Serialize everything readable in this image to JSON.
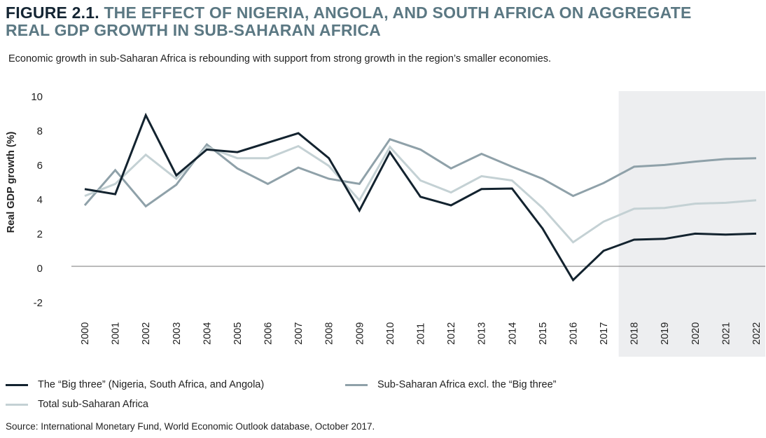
{
  "title_prefix": "FIGURE 2.1.",
  "title_line1": "THE EFFECT OF NIGERIA, ANGOLA, AND SOUTH AFRICA ON AGGREGATE",
  "title_line2": "REAL GDP GROWTH IN SUB-SAHARAN AFRICA",
  "subtitle": "Economic growth in sub-Saharan Africa is rebounding with support from strong growth in the region’s smaller economies.",
  "source": "Source: International Monetary Fund, World Economic Outlook database, October 2017.",
  "chart_data": {
    "type": "line",
    "title": "The effect of Nigeria, Angola, and South Africa on aggregate real GDP growth in sub-Saharan Africa",
    "xlabel": "",
    "ylabel": "Real GDP growth (%)",
    "ylim": [
      -2,
      10
    ],
    "yticks": [
      "10",
      "8",
      "6",
      "4",
      "2",
      "0",
      "-2"
    ],
    "ytick_values": [
      10,
      8,
      6,
      4,
      2,
      0,
      -2
    ],
    "x": [
      "2000",
      "2001",
      "2002",
      "2003",
      "2004",
      "2005",
      "2006",
      "2007",
      "2008",
      "2009",
      "2010",
      "2011",
      "2012",
      "2013",
      "2014",
      "2015",
      "2016",
      "2017",
      "2018",
      "2019",
      "2020",
      "2021",
      "2022"
    ],
    "projection_shaded_from": "2018",
    "series": [
      {
        "name": "Sub-Saharan Africa excl. the “Big three”",
        "color": "#8fa1a9",
        "values": [
          3.55,
          5.6,
          3.5,
          4.75,
          7.1,
          5.7,
          4.8,
          5.75,
          5.1,
          4.8,
          7.4,
          6.8,
          5.7,
          6.55,
          5.8,
          5.1,
          4.1,
          4.85,
          5.8,
          5.9,
          6.1,
          6.25,
          6.3
        ]
      },
      {
        "name": "Total sub-Saharan Africa",
        "color": "#c4d1d4",
        "values": [
          4.1,
          4.8,
          6.5,
          5.1,
          6.95,
          6.3,
          6.3,
          7.0,
          5.85,
          3.85,
          6.95,
          5.0,
          4.3,
          5.25,
          5.0,
          3.4,
          1.4,
          2.6,
          3.35,
          3.4,
          3.65,
          3.7,
          3.85
        ]
      },
      {
        "name": "The “Big three” (Nigeria, South Africa, and Angola)",
        "color": "#13232f",
        "values": [
          4.5,
          4.2,
          8.8,
          5.3,
          6.8,
          6.65,
          7.2,
          7.75,
          6.3,
          3.25,
          6.65,
          4.05,
          3.55,
          4.5,
          4.53,
          2.2,
          -0.8,
          0.9,
          1.55,
          1.6,
          1.9,
          1.85,
          1.9
        ]
      }
    ],
    "legend": "bottom",
    "grid": false
  }
}
